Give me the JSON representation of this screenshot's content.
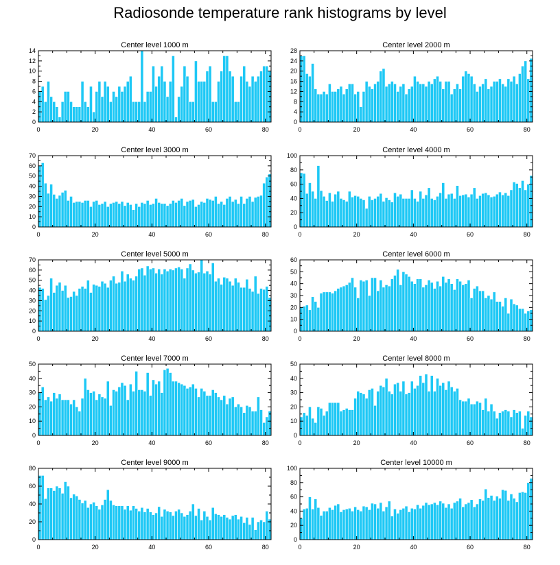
{
  "title": "Radiosonde temperature rank histograms by level",
  "colors": {
    "bar": "#1ec8f5",
    "bar_edge": "#ffffff",
    "axis": "#000000"
  },
  "chart_data": [
    {
      "type": "bar",
      "title": "Center level 1000 m",
      "xlim": [
        0,
        82
      ],
      "ylim": [
        0,
        14
      ],
      "xticks": [
        0,
        20,
        40,
        60,
        80
      ],
      "yticks": [
        0,
        2,
        4,
        6,
        8,
        10,
        12,
        14
      ],
      "values": [
        6,
        7,
        4,
        8,
        5,
        4,
        3,
        1,
        4,
        6,
        6,
        4,
        3,
        3,
        3,
        8,
        4,
        3,
        7,
        2,
        6,
        8,
        5,
        8,
        7,
        4,
        6,
        5,
        7,
        6,
        7,
        8,
        9,
        4,
        4,
        4,
        14,
        4,
        6,
        6,
        11,
        7,
        9,
        11,
        8,
        5,
        8,
        13,
        1,
        5,
        7,
        11,
        9,
        4,
        4,
        12,
        8,
        8,
        8,
        10,
        11,
        4,
        4,
        8,
        10,
        13,
        13,
        10,
        9,
        4,
        4,
        9,
        11,
        8,
        7,
        9,
        8,
        9,
        10,
        11,
        11,
        10
      ]
    },
    {
      "type": "bar",
      "title": "Center level 2000 m",
      "xlim": [
        0,
        82
      ],
      "ylim": [
        0,
        28
      ],
      "xticks": [
        0,
        20,
        40,
        60,
        80
      ],
      "yticks": [
        0,
        4,
        8,
        12,
        16,
        20,
        24,
        28
      ],
      "values": [
        26,
        26,
        19,
        18,
        23,
        13,
        11,
        11,
        12,
        11,
        15,
        12,
        12,
        13,
        14,
        11,
        13,
        15,
        15,
        11,
        12,
        6,
        12,
        16,
        14,
        13,
        15,
        16,
        20,
        21,
        14,
        15,
        16,
        15,
        12,
        14,
        15,
        11,
        13,
        14,
        18,
        16,
        15,
        15,
        14,
        16,
        15,
        17,
        18,
        16,
        13,
        16,
        16,
        11,
        13,
        15,
        13,
        18,
        20,
        19,
        18,
        15,
        12,
        14,
        15,
        17,
        13,
        14,
        16,
        16,
        17,
        15,
        14,
        17,
        16,
        18,
        15,
        19,
        22,
        24,
        17,
        25
      ]
    },
    {
      "type": "bar",
      "title": "Center level 3000 m",
      "xlim": [
        0,
        82
      ],
      "ylim": [
        0,
        70
      ],
      "xticks": [
        0,
        20,
        40,
        60,
        80
      ],
      "yticks": [
        0,
        10,
        20,
        30,
        40,
        50,
        60,
        70
      ],
      "values": [
        60,
        63,
        43,
        33,
        42,
        32,
        28,
        31,
        34,
        36,
        26,
        30,
        24,
        25,
        25,
        24,
        26,
        26,
        20,
        25,
        26,
        22,
        23,
        25,
        20,
        23,
        24,
        25,
        23,
        25,
        21,
        24,
        22,
        17,
        23,
        20,
        24,
        23,
        26,
        22,
        23,
        28,
        24,
        23,
        23,
        21,
        23,
        26,
        24,
        26,
        28,
        21,
        25,
        26,
        27,
        20,
        22,
        25,
        24,
        28,
        27,
        26,
        30,
        23,
        25,
        22,
        28,
        30,
        25,
        27,
        23,
        30,
        23,
        28,
        30,
        25,
        29,
        30,
        31,
        43,
        49,
        52
      ]
    },
    {
      "type": "bar",
      "title": "Center level 4000 m",
      "xlim": [
        0,
        82
      ],
      "ylim": [
        0,
        100
      ],
      "xticks": [
        0,
        20,
        40,
        60,
        80
      ],
      "yticks": [
        0,
        20,
        40,
        60,
        80,
        100
      ],
      "values": [
        76,
        75,
        47,
        62,
        50,
        40,
        86,
        51,
        43,
        37,
        48,
        36,
        46,
        50,
        40,
        38,
        36,
        50,
        42,
        44,
        43,
        40,
        38,
        26,
        43,
        38,
        40,
        43,
        47,
        36,
        41,
        38,
        35,
        48,
        43,
        46,
        40,
        40,
        40,
        52,
        40,
        36,
        50,
        40,
        45,
        55,
        40,
        38,
        43,
        48,
        62,
        40,
        46,
        47,
        40,
        58,
        44,
        45,
        46,
        42,
        46,
        55,
        40,
        44,
        47,
        48,
        45,
        42,
        43,
        46,
        49,
        45,
        48,
        44,
        52,
        63,
        61,
        55,
        65,
        52,
        60,
        72
      ]
    },
    {
      "type": "bar",
      "title": "Center level 5000 m",
      "xlim": [
        0,
        82
      ],
      "ylim": [
        0,
        70
      ],
      "xticks": [
        0,
        20,
        40,
        60,
        80
      ],
      "yticks": [
        0,
        10,
        20,
        30,
        40,
        50,
        60,
        70
      ],
      "values": [
        43,
        42,
        31,
        35,
        52,
        38,
        45,
        48,
        40,
        45,
        33,
        34,
        39,
        35,
        42,
        44,
        42,
        50,
        38,
        46,
        45,
        44,
        49,
        47,
        43,
        50,
        54,
        47,
        48,
        59,
        49,
        56,
        52,
        50,
        54,
        61,
        62,
        55,
        64,
        61,
        62,
        57,
        61,
        56,
        61,
        59,
        61,
        60,
        62,
        63,
        61,
        52,
        62,
        66,
        60,
        57,
        58,
        70,
        57,
        59,
        56,
        67,
        49,
        52,
        46,
        53,
        52,
        49,
        45,
        52,
        48,
        43,
        43,
        51,
        42,
        39,
        54,
        37,
        42,
        41,
        44,
        33
      ]
    },
    {
      "type": "bar",
      "title": "Center level 6000 m",
      "xlim": [
        0,
        82
      ],
      "ylim": [
        0,
        60
      ],
      "xticks": [
        0,
        20,
        40,
        60,
        80
      ],
      "yticks": [
        0,
        10,
        20,
        30,
        40,
        50,
        60
      ],
      "values": [
        20,
        21,
        22,
        18,
        29,
        25,
        20,
        32,
        33,
        33,
        33,
        32,
        34,
        36,
        37,
        38,
        39,
        41,
        45,
        37,
        28,
        43,
        42,
        43,
        30,
        45,
        45,
        34,
        43,
        37,
        39,
        38,
        44,
        47,
        52,
        39,
        50,
        48,
        46,
        42,
        40,
        44,
        44,
        37,
        39,
        43,
        41,
        36,
        42,
        38,
        46,
        41,
        44,
        40,
        35,
        44,
        42,
        39,
        40,
        43,
        28,
        36,
        38,
        34,
        34,
        28,
        30,
        27,
        33,
        25,
        25,
        21,
        28,
        15,
        27,
        23,
        22,
        19,
        19,
        15,
        17,
        18
      ]
    },
    {
      "type": "bar",
      "title": "Center level 7000 m",
      "xlim": [
        0,
        82
      ],
      "ylim": [
        0,
        50
      ],
      "xticks": [
        0,
        20,
        40,
        60,
        80
      ],
      "yticks": [
        0,
        10,
        20,
        30,
        40,
        50
      ],
      "values": [
        30,
        34,
        25,
        27,
        24,
        30,
        26,
        29,
        25,
        25,
        25,
        22,
        25,
        20,
        17,
        26,
        40,
        32,
        30,
        31,
        25,
        29,
        27,
        26,
        38,
        21,
        32,
        31,
        34,
        37,
        35,
        25,
        36,
        31,
        45,
        32,
        32,
        31,
        44,
        28,
        39,
        36,
        38,
        30,
        46,
        47,
        44,
        38,
        38,
        37,
        36,
        35,
        33,
        34,
        36,
        33,
        27,
        33,
        31,
        28,
        28,
        32,
        30,
        27,
        25,
        28,
        22,
        26,
        27,
        20,
        22,
        20,
        16,
        21,
        20,
        17,
        17,
        27,
        18,
        9,
        13,
        17
      ]
    },
    {
      "type": "bar",
      "title": "Center level 8000 m",
      "xlim": [
        0,
        82
      ],
      "ylim": [
        0,
        50
      ],
      "xticks": [
        0,
        20,
        40,
        60,
        80
      ],
      "yticks": [
        0,
        10,
        20,
        30,
        40,
        50
      ],
      "values": [
        13,
        16,
        14,
        20,
        12,
        9,
        20,
        19,
        14,
        17,
        23,
        23,
        23,
        23,
        17,
        18,
        19,
        18,
        18,
        26,
        31,
        30,
        29,
        26,
        32,
        33,
        21,
        31,
        35,
        34,
        40,
        31,
        29,
        36,
        37,
        31,
        38,
        29,
        30,
        38,
        33,
        35,
        42,
        37,
        43,
        31,
        42,
        31,
        40,
        35,
        37,
        32,
        38,
        34,
        31,
        33,
        25,
        24,
        24,
        26,
        22,
        22,
        24,
        23,
        18,
        26,
        17,
        22,
        17,
        12,
        16,
        17,
        18,
        17,
        13,
        18,
        16,
        17,
        5,
        14,
        17,
        13
      ]
    },
    {
      "type": "bar",
      "title": "Center level 9000 m",
      "xlim": [
        0,
        82
      ],
      "ylim": [
        0,
        80
      ],
      "xticks": [
        0,
        20,
        40,
        60,
        80
      ],
      "yticks": [
        0,
        20,
        40,
        60,
        80
      ],
      "values": [
        72,
        72,
        46,
        58,
        58,
        55,
        60,
        58,
        52,
        65,
        60,
        47,
        51,
        49,
        45,
        41,
        44,
        36,
        40,
        42,
        38,
        34,
        39,
        45,
        56,
        44,
        39,
        38,
        38,
        38,
        34,
        38,
        33,
        38,
        35,
        32,
        36,
        31,
        35,
        31,
        28,
        30,
        37,
        26,
        34,
        32,
        31,
        27,
        32,
        34,
        30,
        26,
        28,
        32,
        40,
        27,
        35,
        22,
        32,
        26,
        22,
        36,
        29,
        28,
        26,
        28,
        25,
        23,
        27,
        28,
        23,
        26,
        19,
        25,
        17,
        25,
        11,
        20,
        22,
        20,
        32,
        23
      ]
    },
    {
      "type": "bar",
      "title": "Center level 10000 m",
      "xlim": [
        0,
        82
      ],
      "ylim": [
        0,
        100
      ],
      "xticks": [
        0,
        20,
        40,
        60,
        80
      ],
      "yticks": [
        0,
        20,
        40,
        60,
        80,
        100
      ],
      "values": [
        30,
        43,
        44,
        60,
        43,
        57,
        45,
        34,
        40,
        40,
        45,
        42,
        48,
        50,
        39,
        42,
        43,
        44,
        40,
        46,
        42,
        40,
        47,
        46,
        42,
        51,
        50,
        44,
        52,
        40,
        46,
        54,
        33,
        43,
        37,
        42,
        44,
        47,
        39,
        44,
        43,
        49,
        44,
        48,
        52,
        49,
        50,
        52,
        49,
        54,
        51,
        45,
        50,
        44,
        52,
        54,
        58,
        46,
        50,
        52,
        56,
        46,
        50,
        57,
        55,
        71,
        59,
        62,
        55,
        61,
        58,
        70,
        69,
        55,
        64,
        58,
        53,
        66,
        67,
        66,
        80,
        86
      ]
    }
  ]
}
